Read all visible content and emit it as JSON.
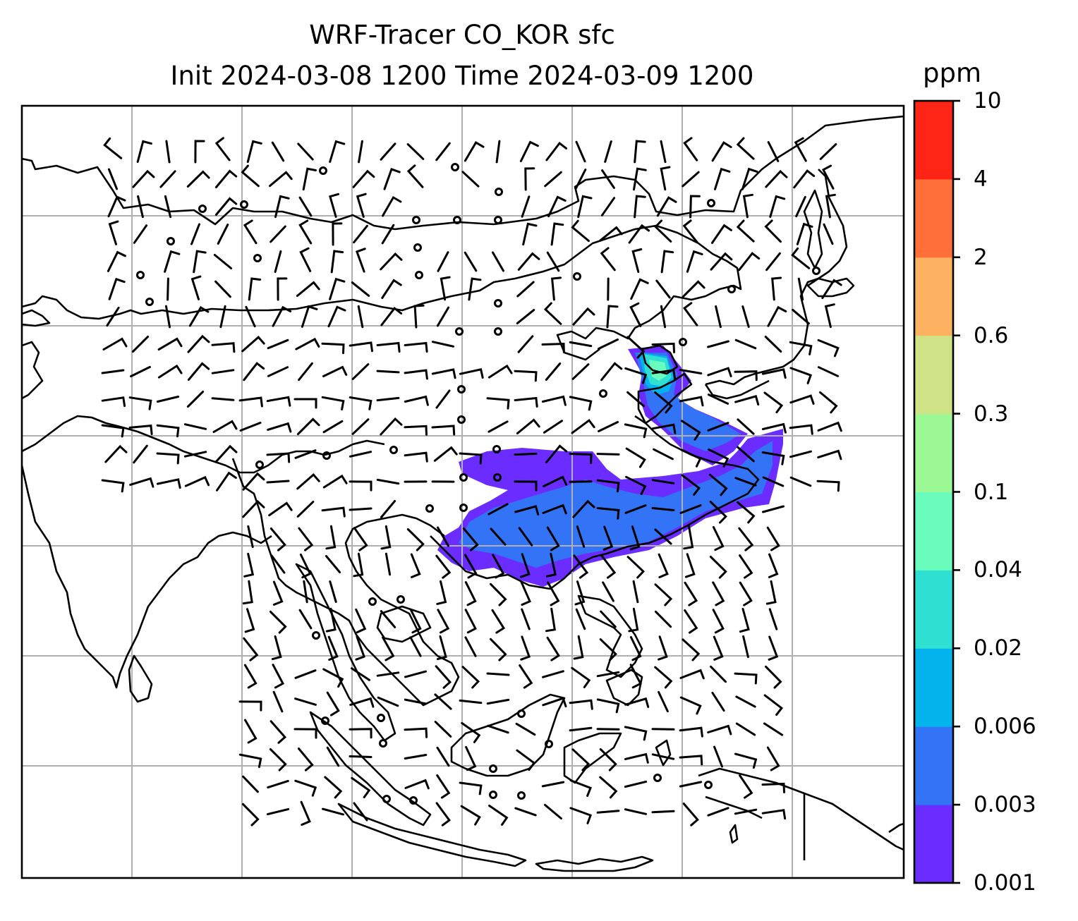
{
  "title": "WRF-Tracer CO_KOR sfc",
  "subtitle": "Init 2024-03-08 1200 Time 2024-03-09 1200",
  "colorbar": {
    "unit": "ppm",
    "levels": [
      "0.001",
      "0.003",
      "0.006",
      "0.02",
      "0.04",
      "0.1",
      "0.3",
      "0.6",
      "2",
      "4",
      "10"
    ],
    "colors": [
      "#6a2cff",
      "#3373f5",
      "#04b3ec",
      "#2fe0d2",
      "#69fcbd",
      "#9cf895",
      "#cfe286",
      "#fdb262",
      "#fe6f3a",
      "#ff2516"
    ]
  },
  "map": {
    "projection": "lat-lon",
    "gridlines": true,
    "wind_barbs": true,
    "tracer_plume": "CO_KOR surface concentration"
  }
}
